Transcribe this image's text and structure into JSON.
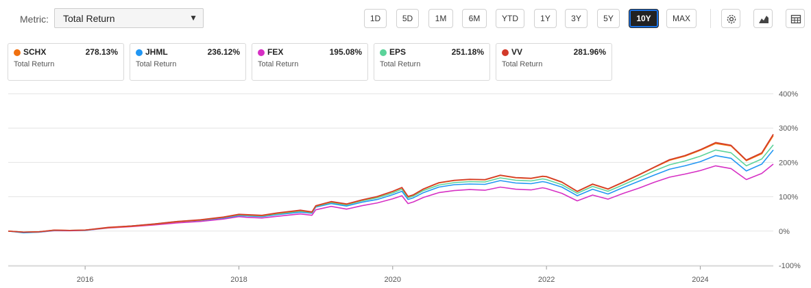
{
  "metric": {
    "label": "Metric:",
    "value": "Total Return"
  },
  "ranges": [
    "1D",
    "5D",
    "1M",
    "6M",
    "YTD",
    "1Y",
    "3Y",
    "5Y",
    "10Y",
    "MAX"
  ],
  "active_range": "10Y",
  "tools": [
    "settings-icon",
    "chart-type-icon",
    "table-view-icon"
  ],
  "legend": [
    {
      "ticker": "SCHX",
      "value": "278.13%",
      "sub": "Total Return",
      "color": "#f0700f"
    },
    {
      "ticker": "JHML",
      "value": "236.12%",
      "sub": "Total Return",
      "color": "#2196f3"
    },
    {
      "ticker": "FEX",
      "value": "195.08%",
      "sub": "Total Return",
      "color": "#d62fc4"
    },
    {
      "ticker": "EPS",
      "value": "251.18%",
      "sub": "Total Return",
      "color": "#5bd39a"
    },
    {
      "ticker": "VV",
      "value": "281.96%",
      "sub": "Total Return",
      "color": "#d23a2a"
    }
  ],
  "chart_data": {
    "type": "line",
    "xlim": [
      2015.0,
      2024.95
    ],
    "ylim": [
      -100,
      400
    ],
    "y_ticks": [
      -100,
      0,
      100,
      200,
      300,
      400
    ],
    "y_tick_labels": [
      "-100%",
      "0%",
      "100%",
      "200%",
      "300%",
      "400%"
    ],
    "x_ticks": [
      2016,
      2018,
      2020,
      2022,
      2024
    ],
    "x_tick_labels": [
      "2016",
      "2018",
      "2020",
      "2022",
      "2024"
    ],
    "grid": true,
    "x": [
      2015.0,
      2015.2,
      2015.4,
      2015.6,
      2015.8,
      2016.0,
      2016.3,
      2016.6,
      2016.9,
      2017.2,
      2017.5,
      2017.8,
      2018.0,
      2018.1,
      2018.3,
      2018.5,
      2018.8,
      2018.95,
      2019.0,
      2019.2,
      2019.4,
      2019.6,
      2019.8,
      2020.0,
      2020.12,
      2020.2,
      2020.27,
      2020.4,
      2020.6,
      2020.8,
      2021.0,
      2021.2,
      2021.4,
      2021.6,
      2021.8,
      2021.95,
      2022.0,
      2022.2,
      2022.4,
      2022.6,
      2022.8,
      2023.0,
      2023.2,
      2023.4,
      2023.6,
      2023.8,
      2024.0,
      2024.2,
      2024.4,
      2024.6,
      2024.8,
      2024.95
    ],
    "series": [
      {
        "name": "SCHX",
        "color": "#f0700f",
        "values": [
          0,
          -3,
          -2,
          3,
          2,
          3,
          10,
          14,
          20,
          27,
          32,
          40,
          48,
          47,
          45,
          52,
          60,
          55,
          73,
          85,
          78,
          90,
          100,
          115,
          126,
          100,
          105,
          122,
          140,
          147,
          150,
          149,
          162,
          155,
          153,
          159,
          158,
          142,
          115,
          136,
          122,
          142,
          163,
          185,
          206,
          218,
          235,
          255,
          248,
          205,
          225,
          278
        ]
      },
      {
        "name": "JHML",
        "color": "#2196f3",
        "values": [
          0,
          -5,
          -3,
          2,
          2,
          2,
          10,
          15,
          20,
          27,
          31,
          38,
          45,
          44,
          42,
          48,
          55,
          52,
          70,
          80,
          73,
          84,
          92,
          106,
          116,
          92,
          97,
          112,
          128,
          135,
          137,
          136,
          147,
          140,
          138,
          144,
          142,
          128,
          103,
          122,
          108,
          127,
          145,
          163,
          180,
          190,
          202,
          220,
          212,
          175,
          195,
          236
        ]
      },
      {
        "name": "FEX",
        "color": "#d62fc4",
        "values": [
          0,
          -4,
          -3,
          1,
          1,
          2,
          9,
          13,
          18,
          24,
          28,
          35,
          42,
          40,
          38,
          43,
          50,
          46,
          62,
          72,
          64,
          74,
          82,
          94,
          103,
          80,
          85,
          98,
          112,
          118,
          121,
          119,
          128,
          122,
          120,
          126,
          124,
          110,
          88,
          105,
          93,
          110,
          125,
          142,
          157,
          166,
          176,
          190,
          182,
          150,
          168,
          195
        ]
      },
      {
        "name": "EPS",
        "color": "#5bd39a",
        "values": [
          0,
          -3,
          -2,
          2,
          2,
          3,
          10,
          15,
          21,
          28,
          32,
          40,
          47,
          46,
          44,
          50,
          58,
          54,
          72,
          83,
          76,
          88,
          97,
          111,
          122,
          97,
          102,
          118,
          134,
          141,
          144,
          143,
          155,
          148,
          146,
          152,
          150,
          135,
          110,
          130,
          116,
          135,
          155,
          175,
          193,
          204,
          218,
          236,
          228,
          190,
          210,
          251
        ]
      },
      {
        "name": "VV",
        "color": "#d23a2a",
        "values": [
          0,
          -3,
          -2,
          3,
          2,
          3,
          11,
          15,
          21,
          28,
          33,
          41,
          49,
          48,
          46,
          53,
          61,
          56,
          74,
          86,
          79,
          91,
          101,
          116,
          127,
          101,
          106,
          123,
          141,
          148,
          151,
          150,
          163,
          156,
          154,
          160,
          159,
          143,
          116,
          137,
          123,
          143,
          164,
          186,
          208,
          220,
          237,
          258,
          250,
          207,
          228,
          282
        ]
      }
    ]
  }
}
